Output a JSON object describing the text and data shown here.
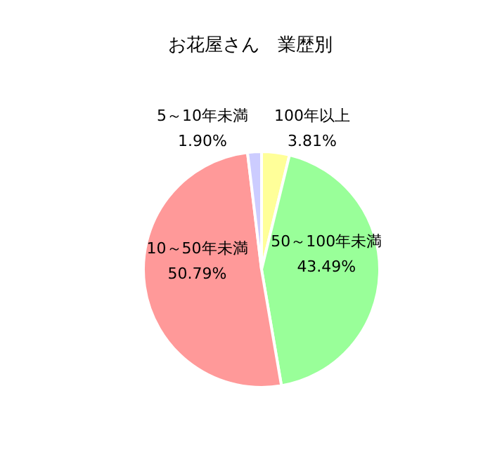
{
  "chart_data": {
    "type": "pie",
    "title": "お花屋さん　業歴別",
    "categories": [
      "100年以上",
      "50～100年未満",
      "10～50年未満",
      "5～10年未満"
    ],
    "values": [
      3.81,
      43.49,
      50.79,
      1.9
    ],
    "value_labels": [
      "3.81%",
      "43.49%",
      "50.79%",
      "1.90%"
    ],
    "colors": [
      "#ffff99",
      "#99ff99",
      "#ff9999",
      "#ccccff"
    ]
  }
}
